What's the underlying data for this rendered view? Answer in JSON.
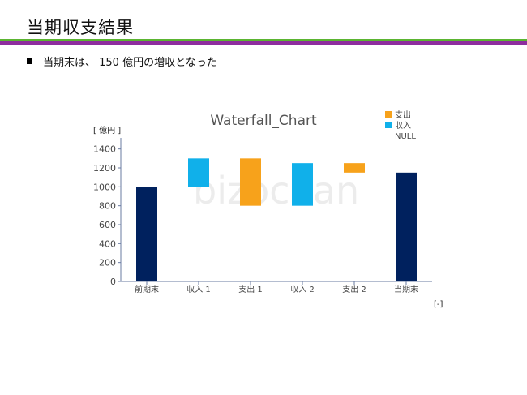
{
  "page": {
    "title": "当期収支結果",
    "bullet": "当期末は、 150 億円の増収となった",
    "y_unit": "[ 億円 ]",
    "x_unit": "[-]",
    "watermark": "bizocean",
    "colors": {
      "rule_green": "#5bb531",
      "rule_purple": "#8e2c9e"
    }
  },
  "chart_data": {
    "type": "bar",
    "subtype": "waterfall",
    "title": "Waterfall_Chart",
    "categories": [
      "前期末",
      "収入 1",
      "支出 1",
      "収入 2",
      "支出 2",
      "当期末"
    ],
    "bars": [
      {
        "category": "前期末",
        "kind": "total",
        "low": 0,
        "high": 1000
      },
      {
        "category": "収入 1",
        "kind": "income",
        "low": 1000,
        "high": 1300
      },
      {
        "category": "支出 1",
        "kind": "expense",
        "low": 800,
        "high": 1300
      },
      {
        "category": "収入 2",
        "kind": "income",
        "low": 800,
        "high": 1250
      },
      {
        "category": "支出 2",
        "kind": "expense",
        "low": 1150,
        "high": 1250
      },
      {
        "category": "当期末",
        "kind": "total",
        "low": 0,
        "high": 1150
      }
    ],
    "ylim": [
      0,
      1500
    ],
    "yticks": [
      0,
      200,
      400,
      600,
      800,
      1000,
      1200,
      1400
    ],
    "grid": false,
    "legend": [
      {
        "label": "支出",
        "color": "#f7a21b"
      },
      {
        "label": "収入",
        "color": "#10b0ea"
      },
      {
        "label": "NULL",
        "color": ""
      }
    ],
    "legend_position": "top-right",
    "colors": {
      "total": "#00215e",
      "income": "#10b0ea",
      "expense": "#f7a21b"
    }
  }
}
